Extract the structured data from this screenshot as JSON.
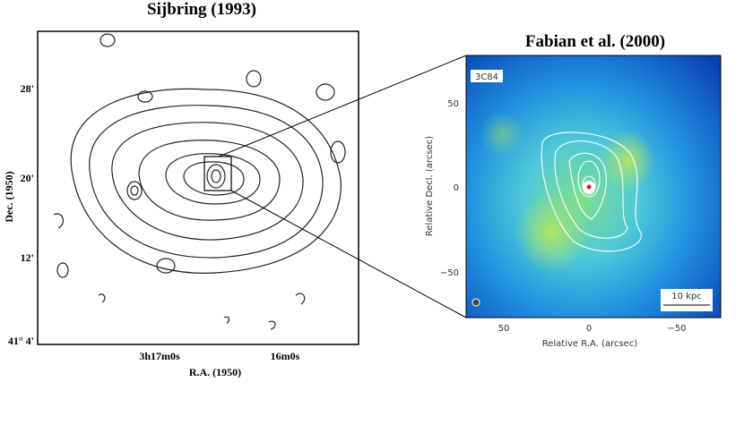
{
  "left_panel": {
    "title": "Sijbring (1993)",
    "y_label": "Dec. (1950)",
    "y_ticks": [
      "28'",
      "20'",
      "12'",
      "41° 4'"
    ],
    "x_ticks": [
      "3h17m0s",
      "16m0s"
    ],
    "x_label": "R.A. (1950)"
  },
  "right_panel": {
    "title": "Fabian et al. (2000)",
    "source_label": "3C84",
    "y_label": "Relative Decl. (arcsec)",
    "y_ticks": [
      "50",
      "0",
      "−50"
    ],
    "x_label": "Relative R.A. (arcsec)",
    "x_ticks": [
      "50",
      "0",
      "−50"
    ],
    "scale_bar": "10 kpc"
  }
}
